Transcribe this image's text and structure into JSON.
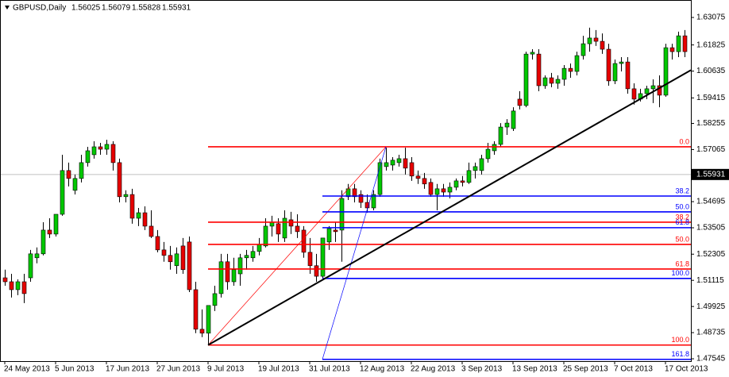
{
  "header": {
    "symbol": "GBPUSD,Daily",
    "ohlc": [
      1.56025,
      1.56079,
      1.55828,
      1.55931
    ]
  },
  "chart_data": {
    "type": "candlestick",
    "categories": [
      "24 May 2013",
      null,
      null,
      null,
      null,
      null,
      null,
      null,
      "5 Jun 2013",
      null,
      null,
      null,
      null,
      null,
      null,
      null,
      "17 Jun 2013",
      null,
      null,
      null,
      null,
      null,
      null,
      null,
      "27 Jun 2013",
      null,
      null,
      null,
      null,
      null,
      null,
      null,
      "9 Jul 2013",
      null,
      null,
      null,
      null,
      null,
      null,
      null,
      "19 Jul 2013",
      null,
      null,
      null,
      null,
      null,
      null,
      null,
      "31 Jul 2013",
      null,
      null,
      null,
      null,
      null,
      null,
      null,
      "12 Aug 2013",
      null,
      null,
      null,
      null,
      null,
      null,
      null,
      "22 Aug 2013",
      null,
      null,
      null,
      null,
      null,
      null,
      null,
      "3 Sep 2013",
      null,
      null,
      null,
      null,
      null,
      null,
      null,
      "13 Sep 2013",
      null,
      null,
      null,
      null,
      null,
      null,
      null,
      "25 Sep 2013",
      null,
      null,
      null,
      null,
      null,
      null,
      null,
      "7 Oct 2013",
      null,
      null,
      null,
      null,
      null,
      null,
      null,
      "17 Oct 2013",
      null,
      null,
      null
    ],
    "open": [
      1.5123,
      1.5105,
      1.5069,
      1.5105,
      1.5123,
      1.5214,
      1.5232,
      1.534,
      1.5322,
      1.5412,
      1.5611,
      1.5521,
      1.5575,
      1.5647,
      1.5683,
      1.5719,
      1.5708,
      1.573,
      1.5647,
      1.5492,
      1.5502,
      1.5394,
      1.5419,
      1.5358,
      1.5311,
      1.525,
      1.5225,
      1.5178,
      1.5268,
      1.5286,
      1.5069,
      1.4889,
      1.4871,
      1.4997,
      1.5051,
      1.5196,
      1.5105,
      1.5141,
      1.5214,
      1.5214,
      1.5243,
      1.5268,
      1.5358,
      1.5369,
      1.5304,
      1.5387,
      1.5358,
      1.534,
      1.5239,
      1.5178,
      1.513,
      1.5286,
      1.534,
      1.534,
      1.5492,
      1.5528,
      1.5502,
      1.5466,
      1.5441,
      1.5502,
      1.5629,
      1.5636,
      1.5647,
      1.5665,
      1.5647,
      1.5586,
      1.5575,
      1.5557,
      1.5502,
      1.5528,
      1.5513,
      1.5535,
      1.5564,
      1.5557,
      1.5611,
      1.5611,
      1.5665,
      1.5701,
      1.573,
      1.5809,
      1.5802,
      1.5936,
      1.5907,
      1.6141,
      1.6141,
      1.5997,
      1.6033,
      1.6008,
      1.6026,
      1.6076,
      1.6062,
      1.6134,
      1.6188,
      1.6214,
      1.6199,
      1.6163,
      1.6019,
      1.6098,
      1.6105,
      1.5983,
      1.5936,
      1.5961,
      1.5983,
      1.5997,
      1.5954,
      1.617,
      1.6152,
      1.6224
    ],
    "high": [
      1.516,
      1.5141,
      1.5116,
      1.5141,
      1.525,
      1.5261,
      1.5376,
      1.5394,
      1.5412,
      1.5683,
      1.5647,
      1.5593,
      1.5683,
      1.5719,
      1.5744,
      1.5737,
      1.5751,
      1.5744,
      1.5665,
      1.5521,
      1.5528,
      1.5441,
      1.5448,
      1.543,
      1.534,
      1.5286,
      1.5268,
      1.5261,
      1.5304,
      1.5311,
      1.5105,
      1.4979,
      1.4997,
      1.5087,
      1.5232,
      1.5232,
      1.5214,
      1.5232,
      1.525,
      1.5268,
      1.5304,
      1.5394,
      1.5405,
      1.5394,
      1.543,
      1.5423,
      1.5412,
      1.5358,
      1.5304,
      1.5232,
      1.5304,
      1.5358,
      1.5376,
      1.5521,
      1.555,
      1.555,
      1.5521,
      1.5502,
      1.5521,
      1.5665,
      1.5715,
      1.5672,
      1.5683,
      1.5715,
      1.5672,
      1.5611,
      1.56,
      1.5575,
      1.555,
      1.555,
      1.5557,
      1.5575,
      1.5586,
      1.5647,
      1.5647,
      1.5683,
      1.5737,
      1.5744,
      1.5827,
      1.5845,
      1.5899,
      1.5972,
      1.6152,
      1.6163,
      1.6163,
      1.6044,
      1.6055,
      1.6044,
      1.6091,
      1.6098,
      1.6152,
      1.6224,
      1.6261,
      1.625,
      1.6235,
      1.6188,
      1.6116,
      1.6127,
      1.6127,
      1.6008,
      1.5983,
      1.5997,
      1.6026,
      1.6044,
      1.6188,
      1.6188,
      1.6243,
      1.625
    ],
    "low": [
      1.5087,
      1.5033,
      1.5044,
      1.5008,
      1.5105,
      1.5189,
      1.5225,
      1.5304,
      1.5311,
      1.5405,
      1.5539,
      1.5502,
      1.5557,
      1.5629,
      1.5665,
      1.5683,
      1.5683,
      1.5611,
      1.5466,
      1.5466,
      1.5369,
      1.5358,
      1.534,
      1.5304,
      1.5239,
      1.5196,
      1.516,
      1.5141,
      1.5141,
      1.5058,
      1.4871,
      1.4853,
      1.482,
      1.4972,
      1.5033,
      1.5069,
      1.5087,
      1.5087,
      1.516,
      1.5196,
      1.5225,
      1.5261,
      1.5311,
      1.5286,
      1.5286,
      1.5322,
      1.5304,
      1.5214,
      1.5141,
      1.5105,
      1.5116,
      1.525,
      1.5286,
      1.5196,
      1.5477,
      1.5466,
      1.5441,
      1.5419,
      1.543,
      1.5492,
      1.5611,
      1.5611,
      1.5629,
      1.5593,
      1.5564,
      1.555,
      1.5528,
      1.5492,
      1.543,
      1.5492,
      1.5484,
      1.5521,
      1.5539,
      1.555,
      1.5575,
      1.5593,
      1.5647,
      1.5683,
      1.5719,
      1.5773,
      1.5791,
      1.5889,
      1.5899,
      1.6116,
      1.5972,
      1.5983,
      1.599,
      1.5983,
      1.5997,
      1.6033,
      1.6044,
      1.6116,
      1.6152,
      1.6178,
      1.6142,
      1.5997,
      1.6004,
      1.6062,
      1.5961,
      1.5911,
      1.5925,
      1.5936,
      1.5918,
      1.5899,
      1.5947,
      1.6116,
      1.6127,
      1.6127
    ],
    "close": [
      1.5105,
      1.5069,
      1.5105,
      1.5051,
      1.5232,
      1.5232,
      1.534,
      1.5322,
      1.5412,
      1.5611,
      1.5575,
      1.5575,
      1.5647,
      1.5701,
      1.5719,
      1.5708,
      1.573,
      1.5647,
      1.5492,
      1.5502,
      1.5394,
      1.5419,
      1.5358,
      1.5311,
      1.525,
      1.5225,
      1.5196,
      1.5232,
      1.516,
      1.5069,
      1.4889,
      1.4871,
      1.4997,
      1.5051,
      1.5196,
      1.5105,
      1.516,
      1.5214,
      1.5225,
      1.5243,
      1.5275,
      1.5358,
      1.5376,
      1.5322,
      1.5394,
      1.5358,
      1.5333,
      1.5239,
      1.5178,
      1.513,
      1.5304,
      1.5347,
      1.5333,
      1.5484,
      1.5528,
      1.5492,
      1.5466,
      1.5441,
      1.5502,
      1.5647,
      1.5647,
      1.5658,
      1.5665,
      1.5622,
      1.5586,
      1.5575,
      1.555,
      1.5502,
      1.5528,
      1.5513,
      1.5535,
      1.5564,
      1.5557,
      1.5611,
      1.5629,
      1.5665,
      1.5708,
      1.573,
      1.5809,
      1.5827,
      1.5882,
      1.5907,
      1.6141,
      1.6149,
      1.5997,
      1.6033,
      1.6008,
      1.6026,
      1.6076,
      1.6062,
      1.6134,
      1.6188,
      1.6214,
      1.6199,
      1.6163,
      1.6019,
      1.6098,
      1.6105,
      1.5983,
      1.5936,
      1.5961,
      1.5983,
      1.5997,
      1.5954,
      1.617,
      1.6152,
      1.6224,
      1.6152
    ],
    "up_color": "#00c800",
    "down_color": "#e60000",
    "ylim": [
      1.4733,
      1.6387
    ],
    "yticks": [
      1.63075,
      1.61825,
      1.60635,
      1.59415,
      1.58255,
      1.57065,
      1.54695,
      1.53505,
      1.52305,
      1.51115,
      1.49925,
      1.48735,
      1.47545
    ],
    "last_price": 1.55931,
    "fibonacci": [
      {
        "color": "#ff0000",
        "anchor_bars": [
          32,
          60
        ],
        "levels": [
          {
            "level": "0.0",
            "price": 1.5719
          },
          {
            "level": "38.2",
            "price": 1.5376
          },
          {
            "level": "50.0",
            "price": 1.5275
          },
          {
            "level": "61.8",
            "price": 1.5163
          },
          {
            "level": "100.0",
            "price": 1.4817
          }
        ]
      },
      {
        "color": "#0000ff",
        "anchor_bars": [
          50,
          60
        ],
        "levels": [
          {
            "level": "38.2",
            "price": 1.5495
          },
          {
            "level": "50.0",
            "price": 1.5423
          },
          {
            "level": "61.8",
            "price": 1.5351
          },
          {
            "level": "100.0",
            "price": 1.512
          },
          {
            "level": "161.8",
            "price": 1.4752
          }
        ]
      }
    ],
    "trendline": {
      "color": "#000000",
      "bars": [
        32,
        80
      ],
      "prices": [
        1.4817,
        1.5607
      ]
    }
  }
}
